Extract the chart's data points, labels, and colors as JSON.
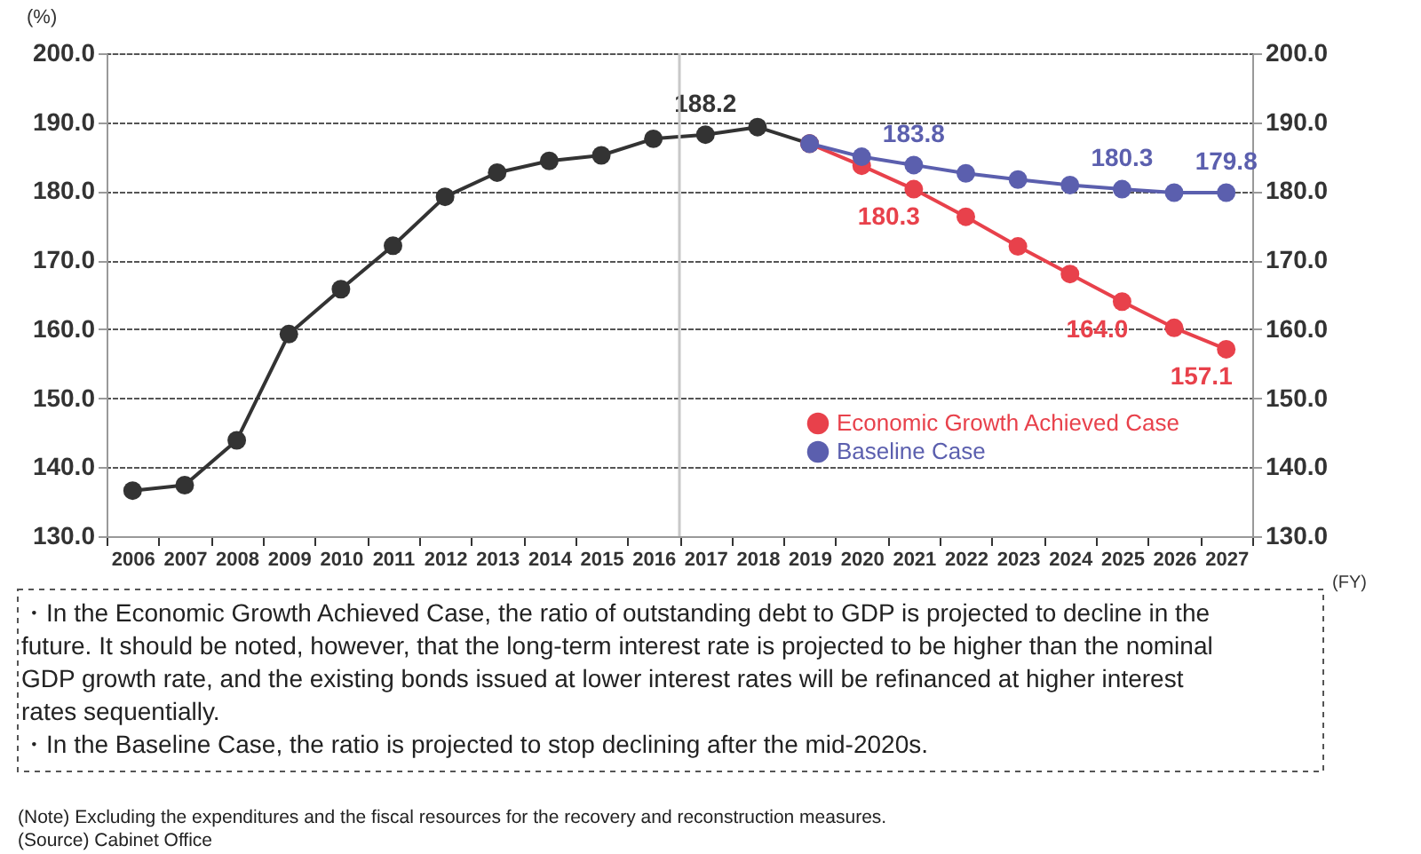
{
  "chart_data": {
    "type": "line",
    "ylabel": "(%)",
    "xlabel": "(FY)",
    "categories": [
      "2006",
      "2007",
      "2008",
      "2009",
      "2010",
      "2011",
      "2012",
      "2013",
      "2014",
      "2015",
      "2016",
      "2017",
      "2018",
      "2019",
      "2020",
      "2021",
      "2022",
      "2023",
      "2024",
      "2025",
      "2026",
      "2027"
    ],
    "series": [
      {
        "color": "#333333",
        "values": [
          136.6,
          137.4,
          143.9,
          159.3,
          165.8,
          172.1,
          179.2,
          182.7,
          184.4,
          185.2,
          187.6,
          188.2,
          189.3,
          186.9,
          null,
          null,
          null,
          null,
          null,
          null,
          null,
          null
        ],
        "value_labels": [
          null,
          null,
          null,
          null,
          null,
          null,
          null,
          null,
          null,
          null,
          null,
          "188.2",
          null,
          null,
          null,
          null,
          null,
          null,
          null,
          null,
          null,
          null
        ]
      },
      {
        "name": "Economic Growth Achieved Case",
        "color": "#e8414b",
        "axis": "y2",
        "values": [
          null,
          null,
          null,
          null,
          null,
          null,
          null,
          null,
          null,
          null,
          null,
          null,
          null,
          186.9,
          183.7,
          180.3,
          176.3,
          172.0,
          168.0,
          164.0,
          160.2,
          157.1
        ],
        "value_labels": [
          null,
          null,
          null,
          null,
          null,
          null,
          null,
          null,
          null,
          null,
          null,
          null,
          null,
          null,
          null,
          "180.3",
          null,
          null,
          null,
          "164.0",
          null,
          "157.1"
        ]
      },
      {
        "name": "Baseline Case",
        "color": "#5b5fae",
        "axis": "y2",
        "values": [
          null,
          null,
          null,
          null,
          null,
          null,
          null,
          null,
          null,
          null,
          null,
          null,
          null,
          186.9,
          185.0,
          183.8,
          182.6,
          181.7,
          180.9,
          180.3,
          179.8,
          179.8
        ],
        "value_labels": [
          null,
          null,
          null,
          null,
          null,
          null,
          null,
          null,
          null,
          null,
          null,
          null,
          null,
          null,
          null,
          "183.8",
          null,
          null,
          null,
          "180.3",
          null,
          "179.8"
        ]
      }
    ],
    "ylim": [
      130,
      200
    ],
    "yticks": [
      {
        "value": 130,
        "label": "130.0"
      },
      {
        "value": 140,
        "label": "140.0"
      },
      {
        "value": 150,
        "label": "150.0"
      },
      {
        "value": 160,
        "label": "160.0"
      },
      {
        "value": 170,
        "label": "170.0"
      },
      {
        "value": 180,
        "label": "180.0"
      },
      {
        "value": 190,
        "label": "190.0"
      },
      {
        "value": 200,
        "label": "200.0"
      }
    ],
    "y2lim": [
      130,
      200
    ],
    "y2ticks": [
      {
        "value": 130,
        "label": "130.0"
      },
      {
        "value": 140,
        "label": "140.0"
      },
      {
        "value": 150,
        "label": "150.0"
      },
      {
        "value": 160,
        "label": "160.0"
      },
      {
        "value": 170,
        "label": "170.0"
      },
      {
        "value": 180,
        "label": "180.0"
      },
      {
        "value": 190,
        "label": "190.0"
      },
      {
        "value": 200,
        "label": "200.0"
      }
    ],
    "grid": "y",
    "marker": "circle",
    "line_style": "solid",
    "legend": "bottom right",
    "ref_lines": [
      {
        "axis": "x",
        "value": "2017",
        "color": "#c8c8c8"
      }
    ],
    "annotations": [
      "・In the Economic Growth Achieved Case, the ratio of outstanding debt to GDP is projected to decline in the future. It should be noted, however, that the long-term interest rate is projected to be higher than the nominal GDP growth rate, and the existing bonds issued at lower interest rates will be refinanced at higher interest rates sequentially.",
      "・In the Baseline Case, the ratio is projected to stop declining after the mid-2020s.",
      "(Note) Excluding the expenditures and the fiscal resources for the recovery and reconstruction measures.",
      "(Source) Cabinet Office"
    ]
  }
}
